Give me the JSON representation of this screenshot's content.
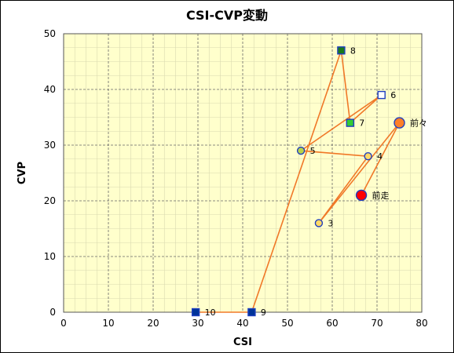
{
  "chart_data": {
    "type": "scatter",
    "title": "CSI-CVP変動",
    "xlabel": "CSI",
    "ylabel": "CVP",
    "xlim": [
      0,
      80
    ],
    "ylim": [
      0,
      50
    ],
    "xticks": [
      0,
      10,
      20,
      30,
      40,
      50,
      60,
      70,
      80
    ],
    "yticks": [
      0,
      10,
      20,
      30,
      40,
      50
    ],
    "grid": true,
    "background_color": "#FFFFCC",
    "line_color": "#F07828",
    "points": [
      {
        "label": "前走",
        "x": 66.5,
        "y": 21,
        "marker": "circle-large",
        "color": "#FF0000"
      },
      {
        "label": "前々",
        "x": 75,
        "y": 34,
        "marker": "circle-large",
        "color": "#FF7F27"
      },
      {
        "label": "3",
        "x": 57,
        "y": 16,
        "marker": "circle",
        "color": "#FFD966"
      },
      {
        "label": "4",
        "x": 68,
        "y": 28,
        "marker": "circle",
        "color": "#FFD966"
      },
      {
        "label": "5",
        "x": 53,
        "y": 29,
        "marker": "circle",
        "color": "#B8D44A"
      },
      {
        "label": "6",
        "x": 71,
        "y": 39,
        "marker": "square",
        "color": "#FFFFFF"
      },
      {
        "label": "7",
        "x": 64,
        "y": 34,
        "marker": "square",
        "color": "#33CC33"
      },
      {
        "label": "8",
        "x": 62,
        "y": 47,
        "marker": "square",
        "color": "#1A7A1A"
      },
      {
        "label": "9",
        "x": 42,
        "y": 0,
        "marker": "square",
        "color": "#003399"
      },
      {
        "label": "10",
        "x": 29.5,
        "y": 0,
        "marker": "square",
        "color": "#003399"
      }
    ],
    "path_order": [
      "前走",
      "前々",
      "3",
      "4",
      "5",
      "6",
      "7",
      "8",
      "9",
      "10"
    ]
  }
}
